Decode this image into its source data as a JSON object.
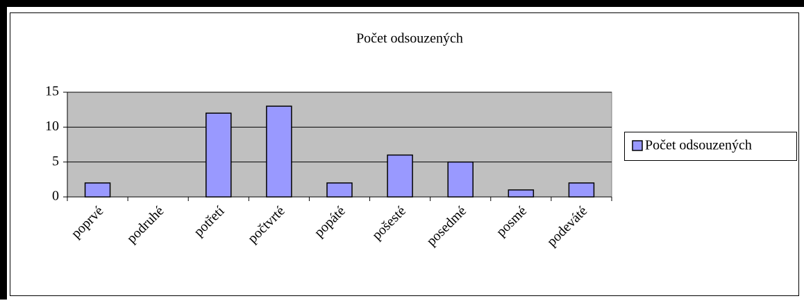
{
  "chart_data": {
    "type": "bar",
    "title": "Počet odsouzených",
    "categories": [
      "poprvé",
      "podruhé",
      "potřetí",
      "počtvrté",
      "popáté",
      "pošesté",
      "posedmé",
      "posmé",
      "podeváté"
    ],
    "series": [
      {
        "name": "Počet odsouzených",
        "color": "#9999ff",
        "values": [
          2,
          0,
          12,
          13,
          2,
          6,
          5,
          1,
          2
        ]
      }
    ],
    "ylim": [
      0,
      15
    ],
    "yticks": [
      0,
      5,
      10,
      15
    ],
    "grid": true,
    "legend": "right",
    "plot_background": "#c0c0c0"
  }
}
